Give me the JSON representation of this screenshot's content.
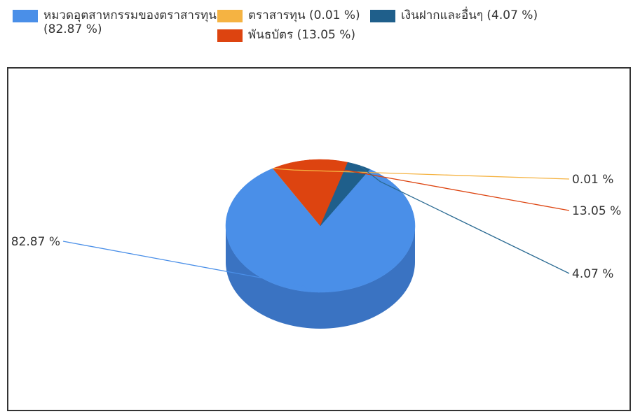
{
  "chart_data": {
    "type": "pie",
    "style": "3d",
    "series": [
      {
        "name": "หมวดอุตสาหกรรมของตราสารทุน",
        "value": 82.87,
        "legend_label": "หมวดอุตสาหกรรมของตราสารทุน",
        "legend_value": "(82.87 %)",
        "slice_label": "82.87 %",
        "color": "#4A8FE8",
        "dark": "#3A73C2"
      },
      {
        "name": "ตราสารทุน",
        "value": 0.01,
        "legend_label": "ตราสารทุน (0.01 %)",
        "slice_label": "0.01 %",
        "color": "#F5B342",
        "dark": "#C98E2C"
      },
      {
        "name": "พันธบัตร",
        "value": 13.05,
        "legend_label": "พันธบัตร (13.05 %)",
        "slice_label": "13.05 %",
        "color": "#DD4410",
        "dark": "#A8320A"
      },
      {
        "name": "เงินฝากและอื่นๆ",
        "value": 4.07,
        "legend_label": "เงินฝากและอื่นๆ (4.07 %)",
        "slice_label": "4.07 %",
        "color": "#1F5F8B",
        "dark": "#154666"
      }
    ],
    "legend_position": "top"
  }
}
